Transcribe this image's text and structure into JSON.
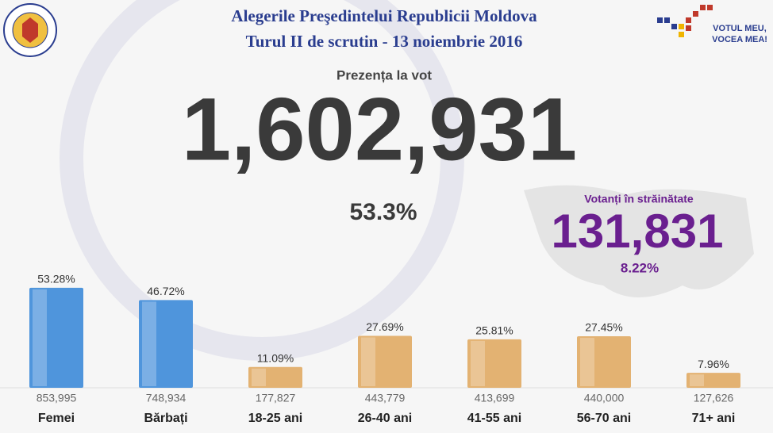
{
  "header": {
    "title": "Alegerile Preşedintelui Republicii Moldova",
    "subtitle": "Turul II de scrutin - 13 noiembrie 2016",
    "slogan_line1": "VOTUL MEU,",
    "slogan_line2": "VOCEA MEA!"
  },
  "turnout": {
    "label": "Prezența la vot",
    "total": "1,602,931",
    "percent": "53.3%"
  },
  "abroad": {
    "label": "Votanți în străinătate",
    "total": "131,831",
    "percent": "8.22%"
  },
  "chart_data": {
    "type": "bar",
    "categories": [
      "Femei",
      "Bărbați",
      "18-25 ani",
      "26-40 ani",
      "41-55 ani",
      "56-70 ani",
      "71+ ani"
    ],
    "values": [
      53.28,
      46.72,
      11.09,
      27.69,
      25.81,
      27.45,
      7.96
    ],
    "value_labels": [
      "53.28%",
      "46.72%",
      "11.09%",
      "27.69%",
      "25.81%",
      "27.45%",
      "7.96%"
    ],
    "count_labels": [
      "853,995",
      "748,934",
      "177,827",
      "443,779",
      "413,699",
      "440,000",
      "127,626"
    ],
    "colors": [
      "#4f95dc",
      "#4f95dc",
      "#e3b272",
      "#e3b272",
      "#e3b272",
      "#e3b272",
      "#e3b272"
    ],
    "ylim": [
      0,
      60
    ]
  }
}
